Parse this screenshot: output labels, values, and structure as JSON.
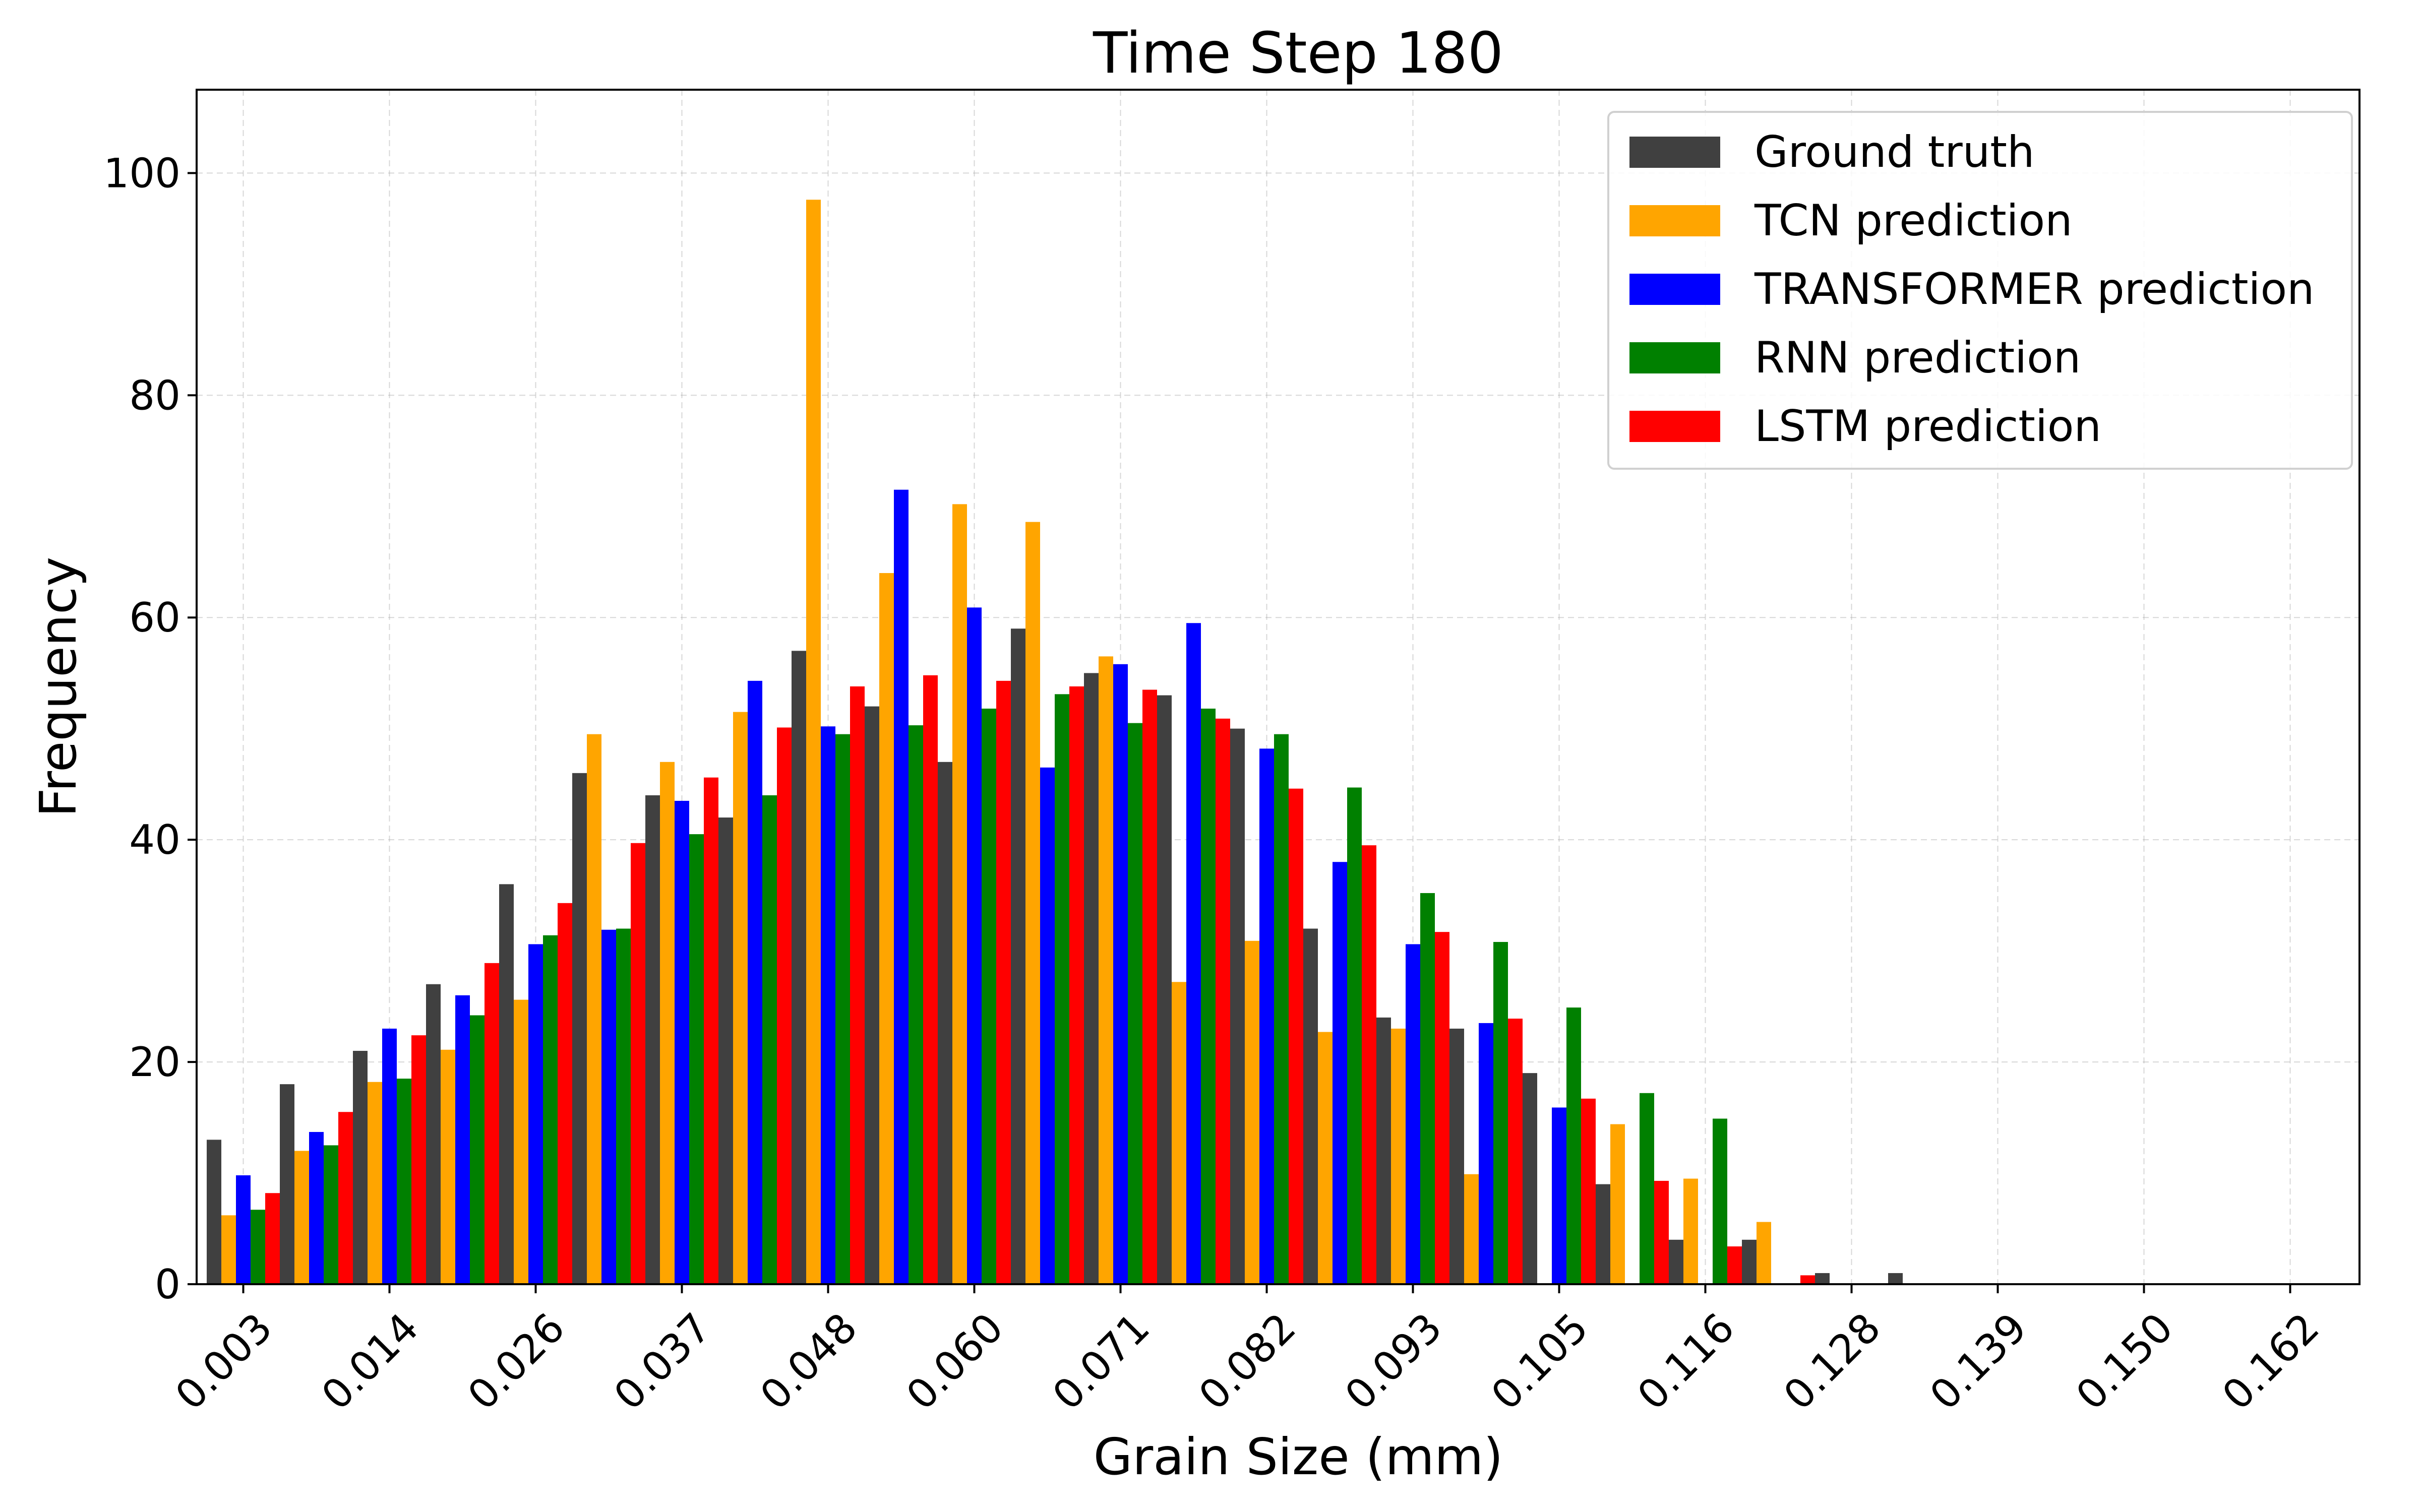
{
  "chart_data": {
    "type": "bar",
    "title": "Time Step 180",
    "xlabel": "Grain Size (mm)",
    "ylabel": "Frequency",
    "ylim": [
      0,
      107.5
    ],
    "yticks": [
      "0",
      "20",
      "40",
      "60",
      "80",
      "100"
    ],
    "ytick_values": [
      0,
      20,
      40,
      60,
      80,
      100
    ],
    "xticks": [
      "0.003",
      "0.014",
      "0.026",
      "0.037",
      "0.048",
      "0.060",
      "0.071",
      "0.082",
      "0.093",
      "0.105",
      "0.116",
      "0.128",
      "0.139",
      "0.150",
      "0.162"
    ],
    "grid": true,
    "legend_position": "top-right",
    "series": [
      {
        "name": "Ground truth",
        "color": "#404040",
        "values": [
          13,
          18,
          21,
          27,
          36,
          46,
          44,
          42,
          57,
          52,
          47,
          59,
          55,
          53,
          50,
          32,
          24,
          23,
          19,
          9,
          4,
          4,
          1,
          1,
          0,
          0,
          0,
          0,
          0,
          0
        ]
      },
      {
        "name": "TCN prediction",
        "color": "#FFA500",
        "values": [
          6.2,
          12,
          18.2,
          21.1,
          25.6,
          49.5,
          47,
          51.5,
          97.6,
          64,
          70.2,
          68.6,
          56.5,
          27.2,
          30.9,
          22.7,
          23,
          9.9,
          0,
          14.4,
          9.5,
          5.6,
          0,
          0,
          0,
          0,
          0,
          0,
          0,
          0
        ]
      },
      {
        "name": "TRANSFORMER prediction",
        "color": "#0000FF",
        "values": [
          9.8,
          13.7,
          23,
          26,
          30.6,
          31.9,
          43.5,
          54.3,
          50.2,
          71.5,
          60.9,
          46.5,
          55.8,
          59.5,
          48.2,
          38,
          30.6,
          23.5,
          15.9,
          0,
          0,
          0,
          0,
          0,
          0,
          0,
          0,
          0,
          0,
          0
        ]
      },
      {
        "name": "RNN prediction",
        "color": "#008000",
        "values": [
          6.7,
          12.5,
          18.5,
          24.2,
          31.4,
          32,
          40.5,
          44,
          49.5,
          50.3,
          51.8,
          53.1,
          50.5,
          51.8,
          49.5,
          44.7,
          35.2,
          30.8,
          24.9,
          17.2,
          14.9,
          0,
          0,
          0,
          0,
          0,
          0,
          0,
          0,
          0
        ]
      },
      {
        "name": "LSTM prediction",
        "color": "#FF0000",
        "values": [
          8.2,
          15.5,
          22.4,
          28.9,
          34.3,
          39.7,
          45.6,
          50.1,
          53.8,
          54.8,
          54.3,
          53.8,
          53.5,
          50.9,
          44.6,
          39.5,
          31.7,
          23.9,
          16.7,
          9.3,
          3.4,
          0.8,
          0,
          0,
          0,
          0,
          0,
          0,
          0,
          0
        ]
      }
    ]
  }
}
